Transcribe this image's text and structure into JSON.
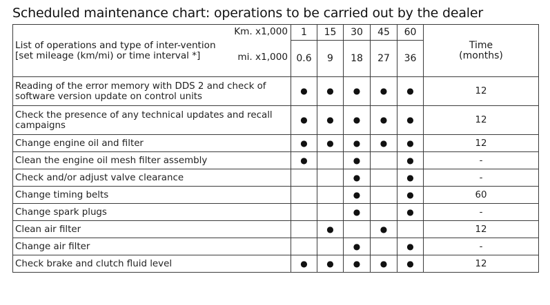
{
  "title": "Scheduled maintenance chart: operations to be carried out by the dealer",
  "header": {
    "label": "List of operations and type of inter-vention [set mileage (km/mi) or time interval *]",
    "km_unit": "Km. x1,000",
    "mi_unit": "mi. x1,000",
    "km": [
      "1",
      "15",
      "30",
      "45",
      "60"
    ],
    "mi": [
      "0.6",
      "9",
      "18",
      "27",
      "36"
    ],
    "time_label": "Time (months)"
  },
  "bullet": "●",
  "rows": [
    {
      "operation": "Reading of the error memory with DDS 2 and check of software version update on control units",
      "marks": [
        "●",
        "●",
        "●",
        "●",
        "●"
      ],
      "time": "12"
    },
    {
      "operation": "Check the presence of any technical updates and recall campaigns",
      "marks": [
        "●",
        "●",
        "●",
        "●",
        "●"
      ],
      "time": "12"
    },
    {
      "operation": "Change engine oil and filter",
      "marks": [
        "●",
        "●",
        "●",
        "●",
        "●"
      ],
      "time": "12"
    },
    {
      "operation": "Clean the engine oil mesh filter assembly",
      "marks": [
        "●",
        "",
        "●",
        "",
        "●"
      ],
      "time": "-"
    },
    {
      "operation": "Check and/or adjust valve clearance",
      "marks": [
        "",
        "",
        "●",
        "",
        "●"
      ],
      "time": "-"
    },
    {
      "operation": "Change timing belts",
      "marks": [
        "",
        "",
        "●",
        "",
        "●"
      ],
      "time": "60"
    },
    {
      "operation": "Change spark plugs",
      "marks": [
        "",
        "",
        "●",
        "",
        "●"
      ],
      "time": "-"
    },
    {
      "operation": "Clean air filter",
      "marks": [
        "",
        "●",
        "",
        "●",
        ""
      ],
      "time": "12"
    },
    {
      "operation": "Change air filter",
      "marks": [
        "",
        "",
        "●",
        "",
        "●"
      ],
      "time": "-"
    },
    {
      "operation": "Check brake and clutch fluid level",
      "marks": [
        "●",
        "●",
        "●",
        "●",
        "●"
      ],
      "time": "12"
    }
  ]
}
